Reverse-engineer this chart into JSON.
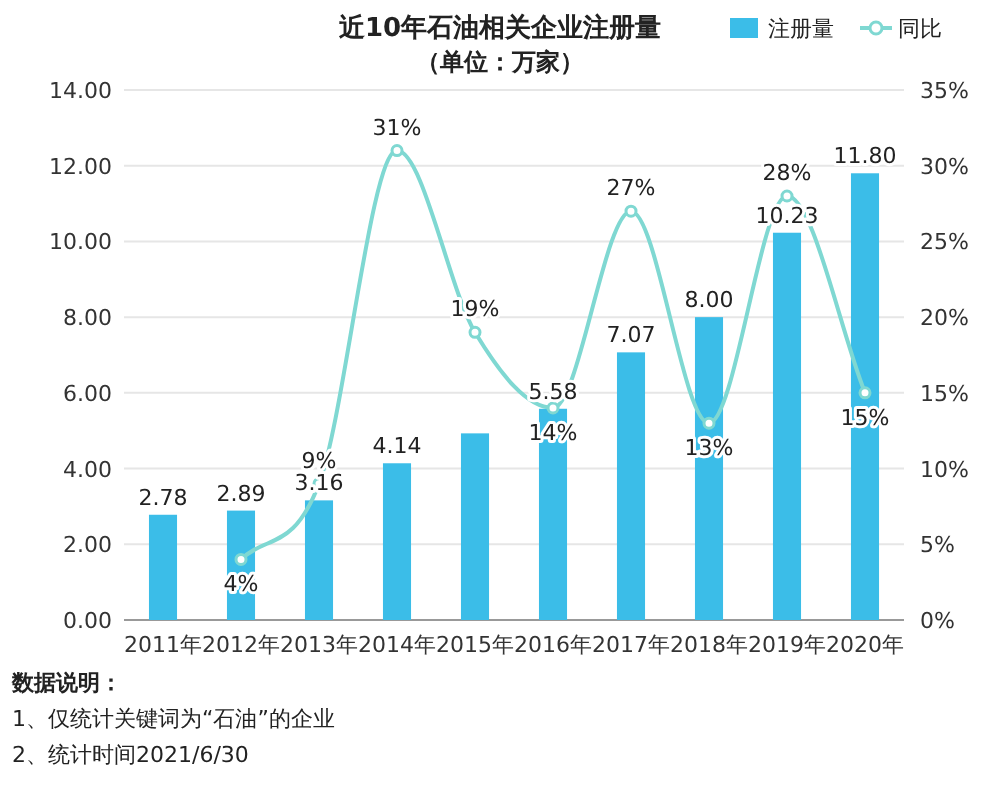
{
  "chart_data": {
    "type": "bar",
    "title": "近10年石油相关企业注册量",
    "subtitle": "（单位：万家）",
    "categories": [
      "2011年",
      "2012年",
      "2013年",
      "2014年",
      "2015年",
      "2016年",
      "2017年",
      "2018年",
      "2019年",
      "2020年"
    ],
    "series": [
      {
        "name": "注册量",
        "color": "#3bbde8",
        "values": [
          2.78,
          2.89,
          3.16,
          4.14,
          4.93,
          5.58,
          7.07,
          8.0,
          10.23,
          11.8
        ],
        "value_labels": [
          "2.78",
          "2.89",
          "3.16",
          "4.14",
          null,
          "5.58",
          "7.07",
          "8.00",
          "10.23",
          "11.80"
        ]
      },
      {
        "name": "同比",
        "type": "line",
        "axis": "y2",
        "color": "#7fd8d2",
        "marker": "circle",
        "values": [
          null,
          4,
          9,
          31,
          19,
          14,
          27,
          13,
          28,
          15
        ],
        "value_labels": [
          null,
          "4%",
          "9%",
          "31%",
          "19%",
          "14%",
          "27%",
          "13%",
          "28%",
          "15%"
        ]
      }
    ],
    "ylim": [
      0,
      14
    ],
    "yticks": [
      {
        "value": 0,
        "label": "0.00"
      },
      {
        "value": 2,
        "label": "2.00"
      },
      {
        "value": 4,
        "label": "4.00"
      },
      {
        "value": 6,
        "label": "6.00"
      },
      {
        "value": 8,
        "label": "8.00"
      },
      {
        "value": 10,
        "label": "10.00"
      },
      {
        "value": 12,
        "label": "12.00"
      },
      {
        "value": 14,
        "label": "14.00"
      }
    ],
    "y2lim": [
      0,
      35
    ],
    "y2ticks": [
      {
        "value": 0,
        "label": "0%"
      },
      {
        "value": 5,
        "label": "5%"
      },
      {
        "value": 10,
        "label": "10%"
      },
      {
        "value": 15,
        "label": "15%"
      },
      {
        "value": 20,
        "label": "20%"
      },
      {
        "value": 25,
        "label": "25%"
      },
      {
        "value": 30,
        "label": "30%"
      },
      {
        "value": 35,
        "label": "35%"
      }
    ],
    "grid": "y",
    "legend": "top right",
    "annotations": [
      "数据说明：",
      "1、仅统计关键词为“石油”的企业",
      "2、统计时间2021/6/30"
    ]
  }
}
